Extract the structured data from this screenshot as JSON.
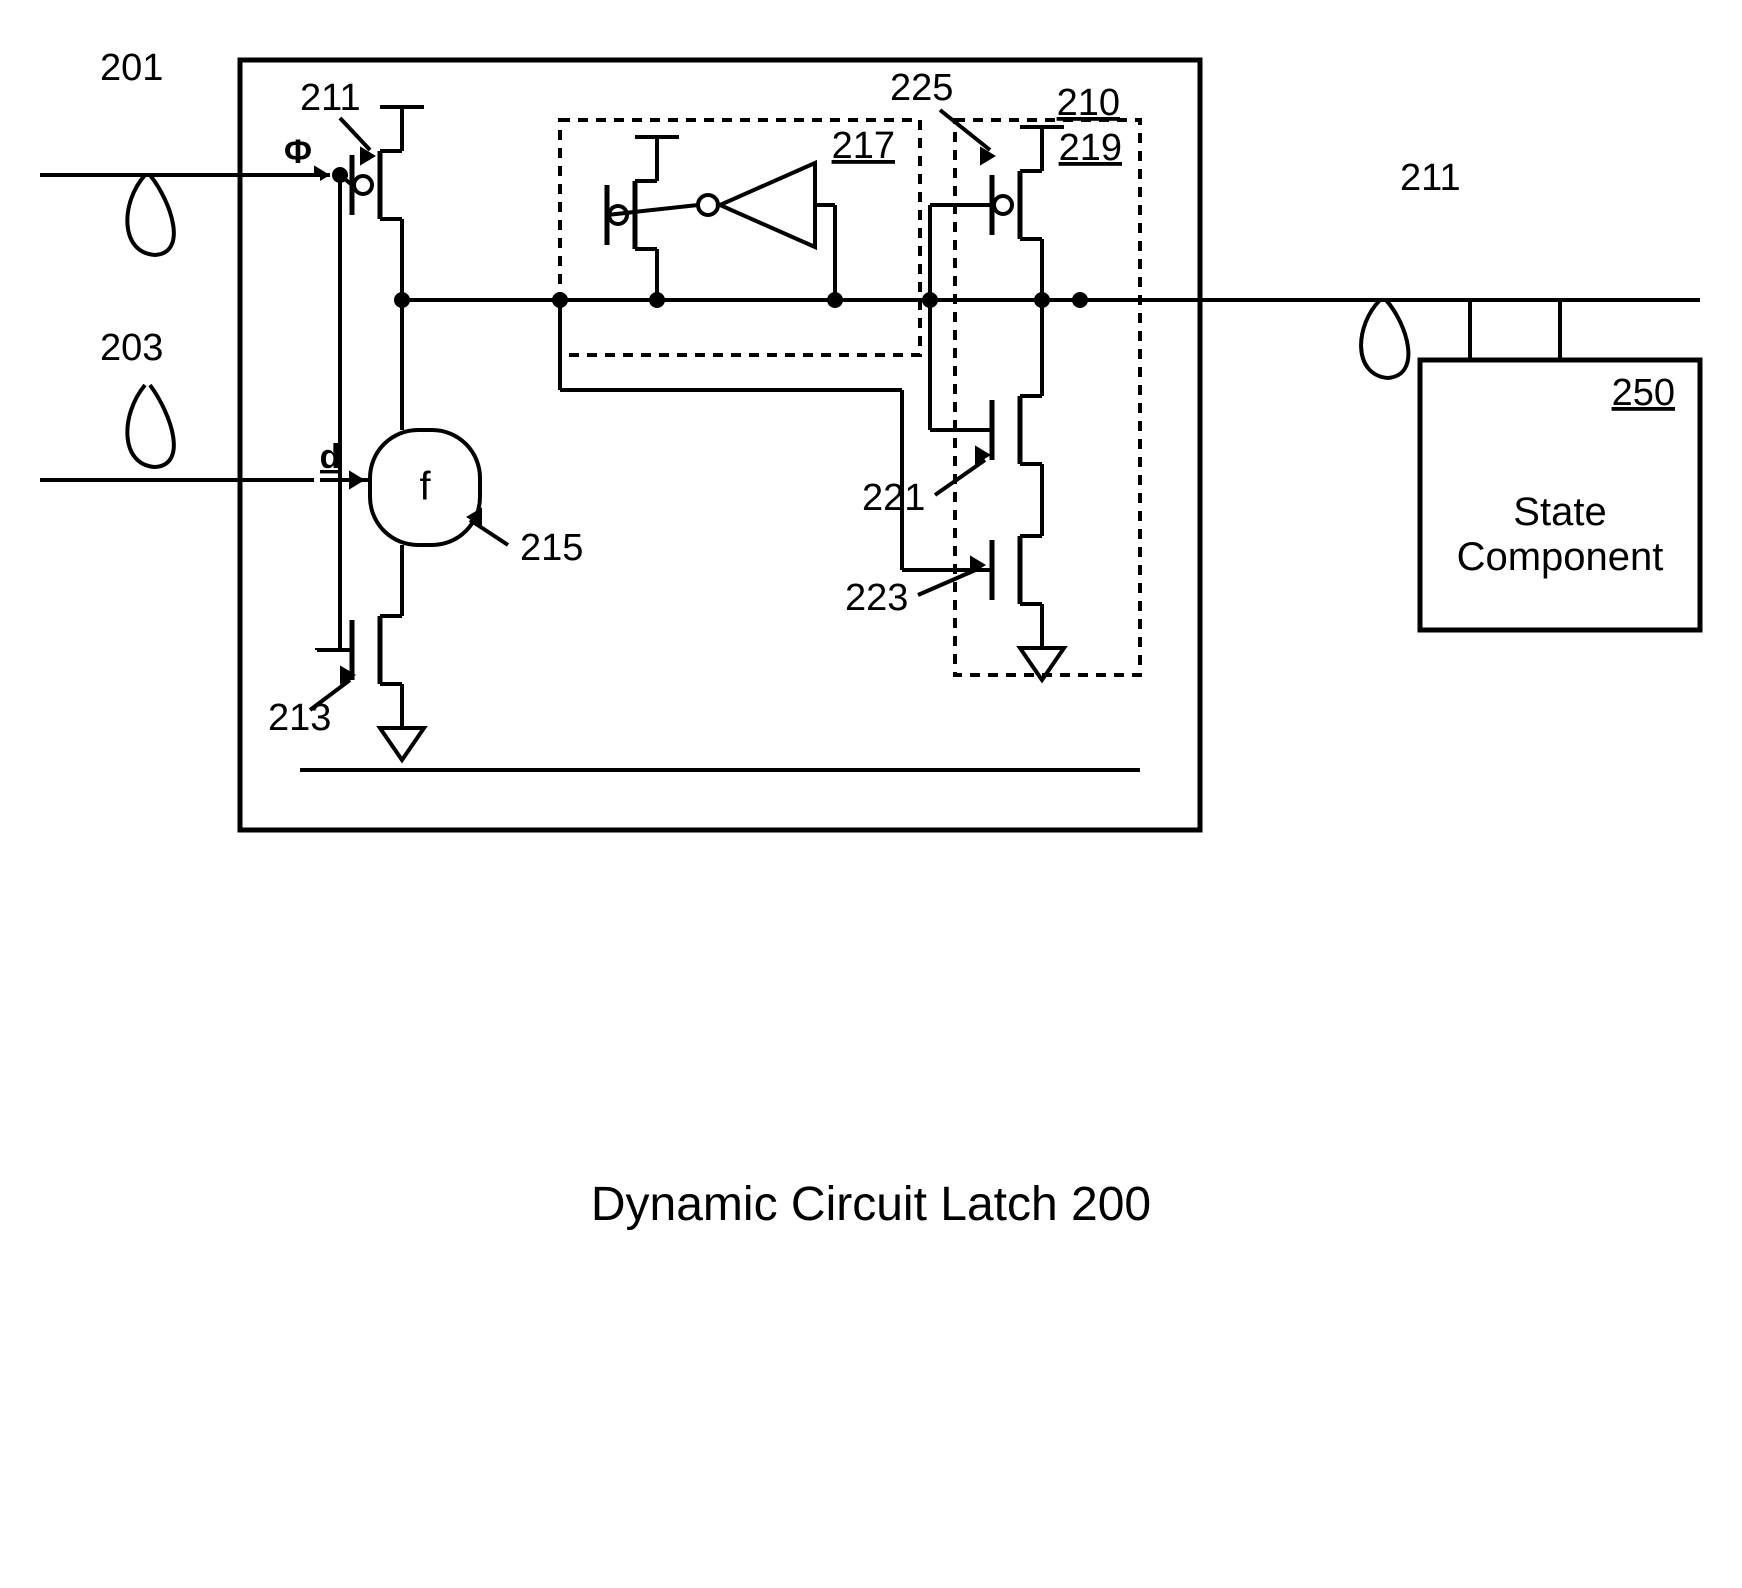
{
  "title": "Dynamic Circuit Latch 200",
  "labels": {
    "l201": "201",
    "l203": "203",
    "l211a": "211",
    "l211b": "211",
    "l210": "210",
    "l217": "217",
    "l219": "219",
    "l225": "225",
    "l250": "250",
    "l215": "215",
    "l221": "221",
    "l223": "223",
    "l213": "213",
    "phi": "Φ",
    "d": "d",
    "f": "f",
    "state": "State",
    "component": "Component"
  },
  "style": {
    "stroke": "#000000",
    "stroke_width": 4,
    "stroke_width_thick": 5,
    "dash": "10,8",
    "font_label": 38,
    "font_big": 42,
    "font_title": 48,
    "dot_r": 8
  }
}
